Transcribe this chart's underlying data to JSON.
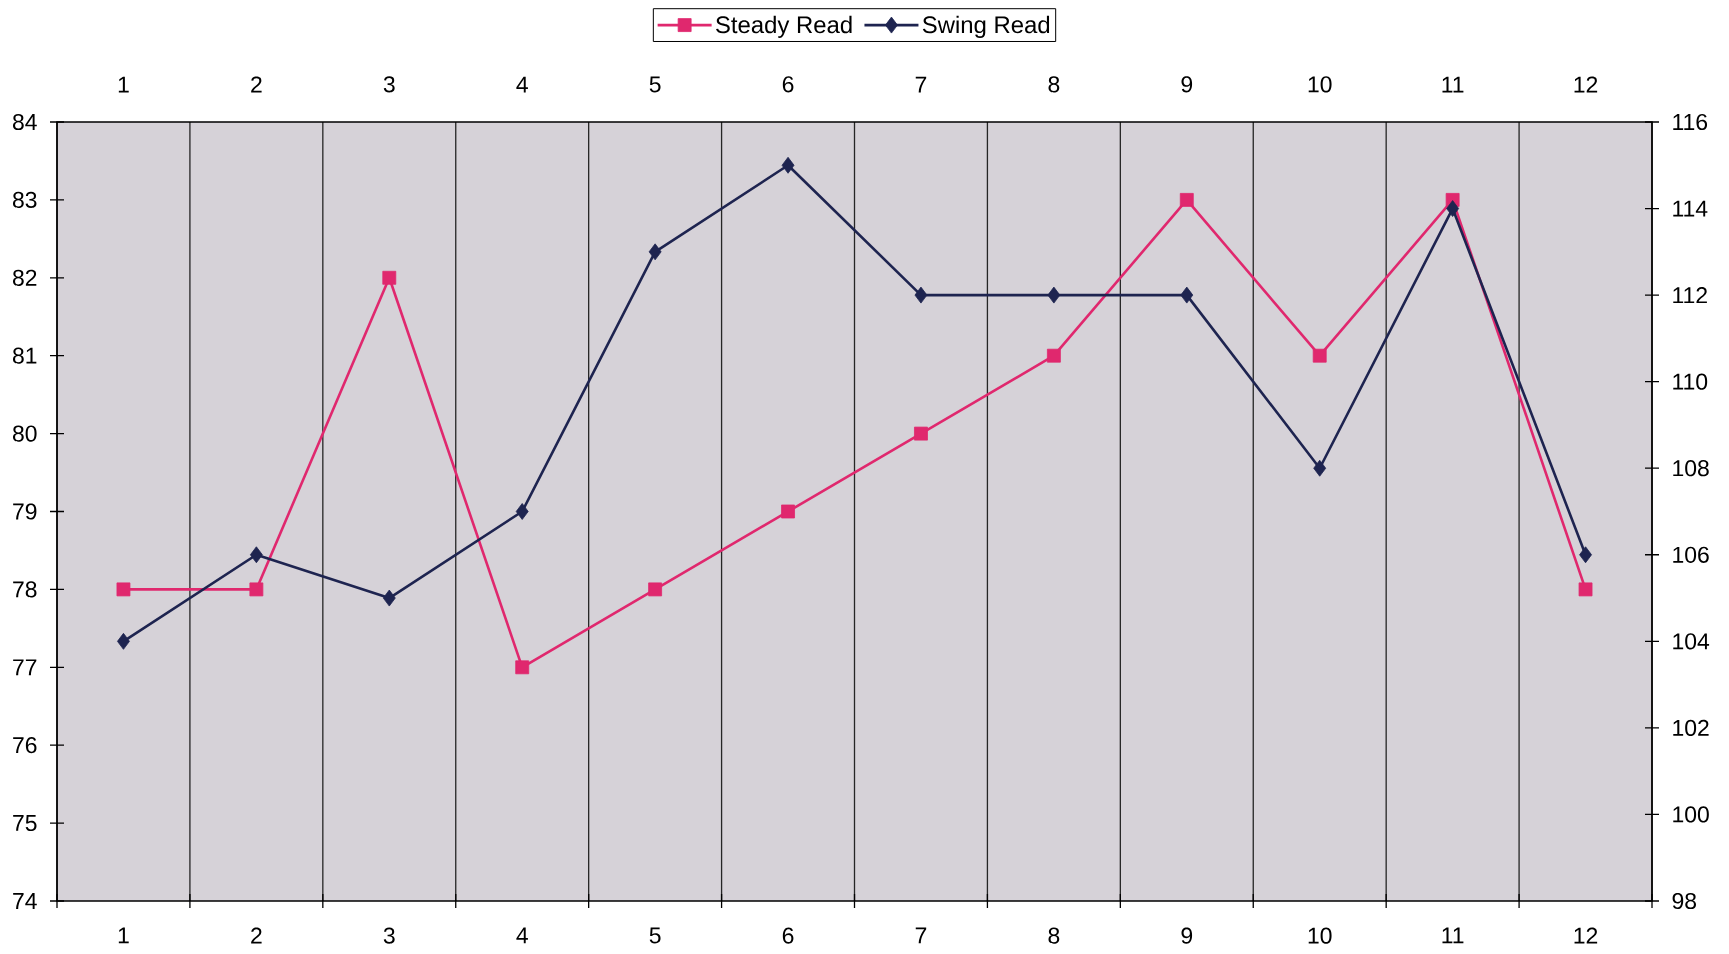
{
  "chart_data": {
    "type": "line",
    "categories": [
      "1",
      "2",
      "3",
      "4",
      "5",
      "6",
      "7",
      "8",
      "9",
      "10",
      "11",
      "12"
    ],
    "series": [
      {
        "name": "Steady Read",
        "color": "#e0286e",
        "marker": "square",
        "values": [
          78,
          78,
          82,
          77,
          78,
          79,
          80,
          81,
          83,
          81,
          83,
          78
        ]
      },
      {
        "name": "Swing Read",
        "color": "#1e2450",
        "marker": "diamond",
        "axis": "y2",
        "values": [
          104,
          106,
          105,
          107,
          113,
          115,
          112,
          112,
          112,
          108,
          114,
          106
        ]
      }
    ],
    "ylim": [
      74,
      84
    ],
    "yticks": [
      74,
      75,
      76,
      77,
      78,
      79,
      80,
      81,
      82,
      83,
      84
    ],
    "y2lim": [
      98,
      116
    ],
    "y2ticks": [
      98,
      100,
      102,
      104,
      106,
      108,
      110,
      112,
      114,
      116
    ],
    "grid": "x",
    "legend": "top",
    "line_style": "solid"
  }
}
